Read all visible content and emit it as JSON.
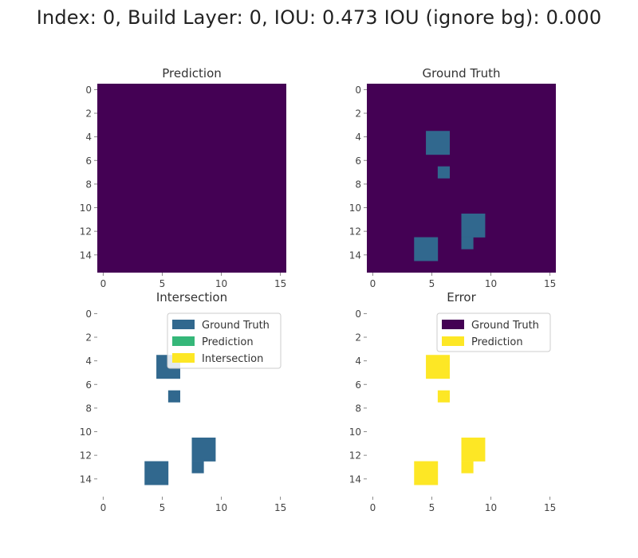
{
  "suptitle": "Index: 0, Build Layer: 0, IOU: 0.473 IOU (ignore bg): 0.000",
  "colors": {
    "background_cell": "#440154",
    "ground_truth": "#31688e",
    "prediction": "#35b779",
    "intersection": "#fde725"
  },
  "chart_data": [
    {
      "type": "heatmap",
      "title": "Prediction",
      "grid_size": 16,
      "xticks": [
        "0",
        "5",
        "10",
        "15"
      ],
      "yticks": [
        "0",
        "2",
        "4",
        "6",
        "8",
        "10",
        "12",
        "14"
      ],
      "background": "#440154",
      "cells": [],
      "legend": []
    },
    {
      "type": "heatmap",
      "title": "Ground Truth",
      "grid_size": 16,
      "xticks": [
        "0",
        "5",
        "10",
        "15"
      ],
      "yticks": [
        "0",
        "2",
        "4",
        "6",
        "8",
        "10",
        "12",
        "14"
      ],
      "background": "#440154",
      "cells": [
        {
          "color": "#31688e",
          "rect": [
            5,
            4,
            2,
            2
          ]
        },
        {
          "color": "#31688e",
          "rect": [
            6,
            7,
            1,
            1
          ]
        },
        {
          "color": "#31688e",
          "rect": [
            8,
            11,
            2,
            2
          ]
        },
        {
          "color": "#31688e",
          "rect": [
            8,
            13,
            1,
            1
          ]
        },
        {
          "color": "#31688e",
          "rect": [
            4,
            13,
            2,
            2
          ]
        }
      ],
      "legend": []
    },
    {
      "type": "heatmap",
      "title": "Intersection",
      "grid_size": 16,
      "xticks": [
        "0",
        "5",
        "10",
        "15"
      ],
      "yticks": [
        "0",
        "2",
        "4",
        "6",
        "8",
        "10",
        "12",
        "14"
      ],
      "background": "#ffffff",
      "cells": [
        {
          "color": "#31688e",
          "rect": [
            5,
            4,
            2,
            2
          ]
        },
        {
          "color": "#31688e",
          "rect": [
            6,
            7,
            1,
            1
          ]
        },
        {
          "color": "#31688e",
          "rect": [
            8,
            11,
            2,
            2
          ]
        },
        {
          "color": "#31688e",
          "rect": [
            8,
            13,
            1,
            1
          ]
        },
        {
          "color": "#31688e",
          "rect": [
            4,
            13,
            2,
            2
          ]
        }
      ],
      "legend": [
        {
          "label": "Ground Truth",
          "color": "#31688e"
        },
        {
          "label": "Prediction",
          "color": "#35b779"
        },
        {
          "label": "Intersection",
          "color": "#fde725"
        }
      ]
    },
    {
      "type": "heatmap",
      "title": "Error",
      "grid_size": 16,
      "xticks": [
        "0",
        "5",
        "10",
        "15"
      ],
      "yticks": [
        "0",
        "2",
        "4",
        "6",
        "8",
        "10",
        "12",
        "14"
      ],
      "background": "#ffffff",
      "cells": [
        {
          "color": "#fde725",
          "rect": [
            5,
            4,
            2,
            2
          ]
        },
        {
          "color": "#fde725",
          "rect": [
            6,
            7,
            1,
            1
          ]
        },
        {
          "color": "#fde725",
          "rect": [
            8,
            11,
            2,
            2
          ]
        },
        {
          "color": "#fde725",
          "rect": [
            8,
            13,
            1,
            1
          ]
        },
        {
          "color": "#fde725",
          "rect": [
            4,
            13,
            2,
            2
          ]
        }
      ],
      "legend": [
        {
          "label": "Ground Truth",
          "color": "#440154"
        },
        {
          "label": "Prediction",
          "color": "#fde725"
        }
      ]
    }
  ]
}
